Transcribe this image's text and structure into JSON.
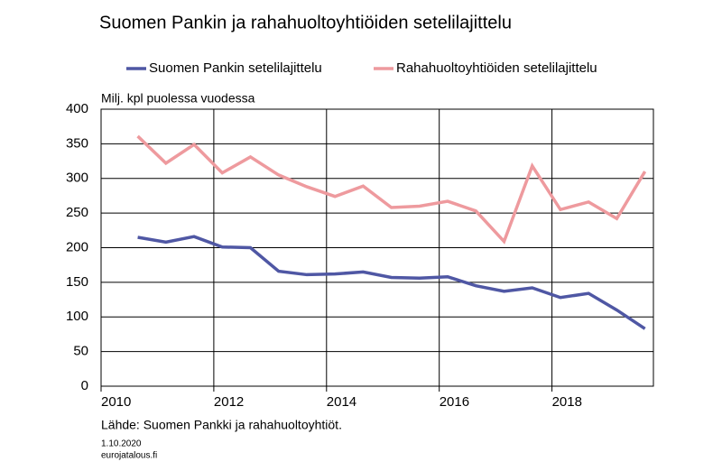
{
  "chart_data": {
    "type": "line",
    "title": "Suomen Pankin ja rahahuoltoyhtiöiden setelilajittelu",
    "y_label": "Milj. kpl puolessa vuodessa",
    "source": "Lähde: Suomen Pankki ja rahahuoltoyhtiöt.",
    "date": "1.10.2020",
    "site": "eurojatalous.fi",
    "x": [
      2010.65,
      2011.15,
      2011.65,
      2012.15,
      2012.65,
      2013.15,
      2013.65,
      2014.15,
      2014.65,
      2015.15,
      2015.65,
      2016.15,
      2016.65,
      2017.15,
      2017.65,
      2018.15,
      2018.65,
      2019.15,
      2019.65
    ],
    "series": [
      {
        "name": "Suomen Pankin setelilajittelu",
        "color": "#4f57a4",
        "values": [
          215,
          208,
          216,
          201,
          200,
          166,
          161,
          162,
          165,
          157,
          156,
          158,
          145,
          137,
          142,
          128,
          134,
          110,
          83
        ]
      },
      {
        "name": "Rahahuoltoyhtiöiden setelilajittelu",
        "color": "#ee9a9e",
        "values": [
          361,
          322,
          349,
          308,
          331,
          305,
          288,
          274,
          289,
          258,
          260,
          267,
          253,
          209,
          318,
          255,
          266,
          242,
          310
        ]
      }
    ],
    "xlim": [
      2010,
      2019.8
    ],
    "xticks": [
      2010,
      2012,
      2014,
      2016,
      2018
    ],
    "ylim": [
      0,
      400
    ],
    "yticks": [
      0,
      50,
      100,
      150,
      200,
      250,
      300,
      350,
      400
    ],
    "grid": true,
    "legend": "top"
  }
}
